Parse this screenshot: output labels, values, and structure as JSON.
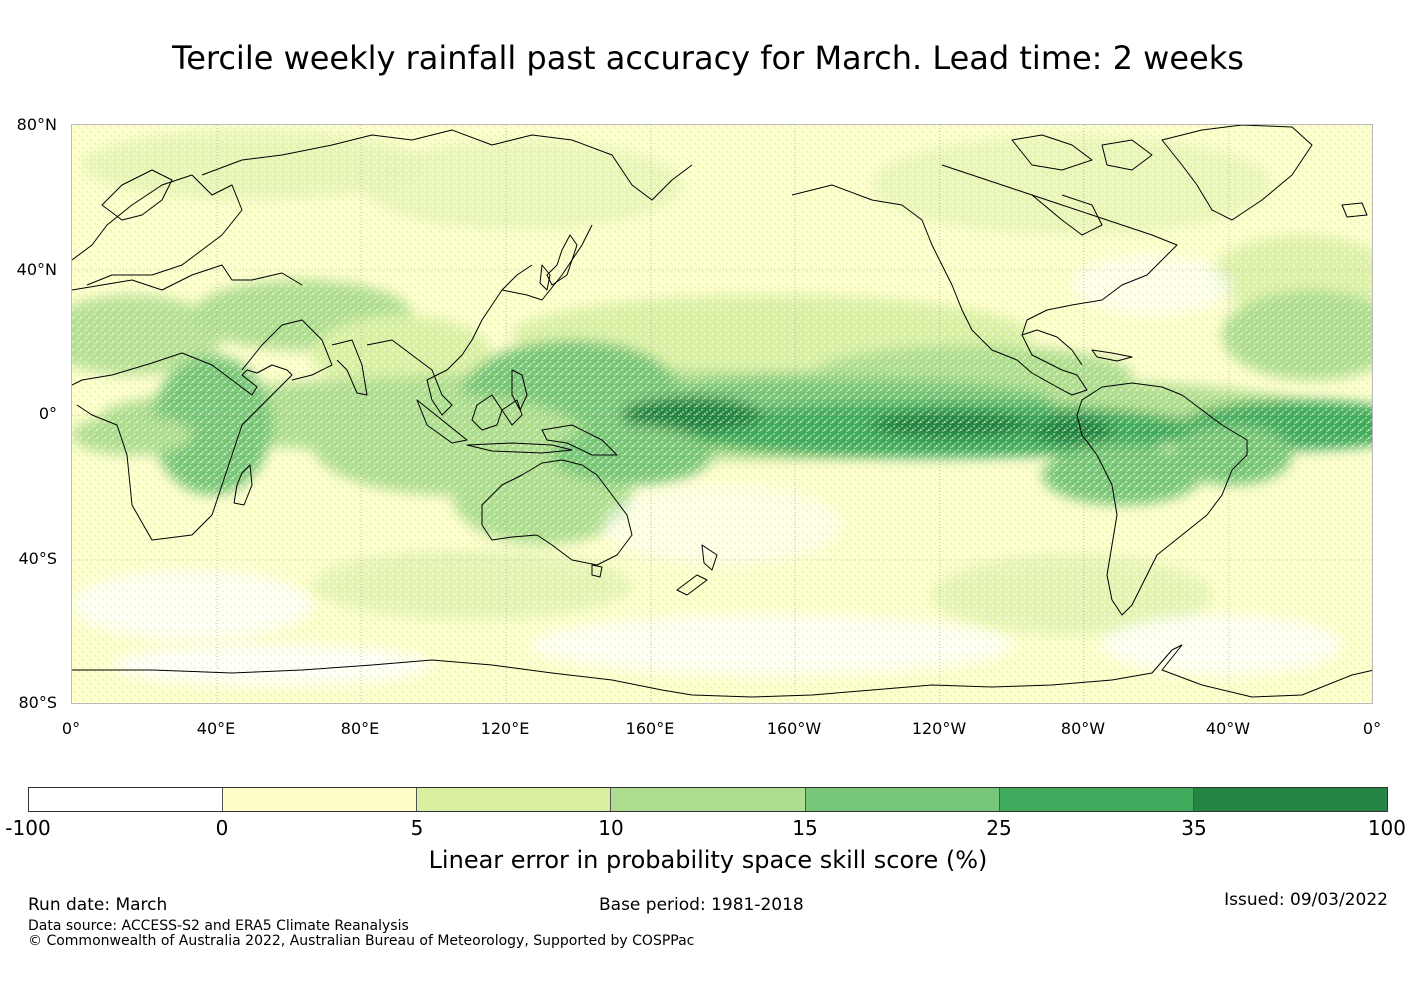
{
  "title": "Tercile weekly rainfall past accuracy for March. Lead time: 2 weeks",
  "map": {
    "lat_labels": [
      "80°N",
      "40°N",
      "0°",
      "40°S",
      "80°S"
    ],
    "lon_labels": [
      "0°",
      "40°E",
      "80°E",
      "120°E",
      "160°E",
      "160°W",
      "120°W",
      "80°W",
      "40°W",
      "0°"
    ],
    "land_outline_color": "#000000",
    "gridline_color": "#999999"
  },
  "colorbar": {
    "ticks": [
      "-100",
      "0",
      "5",
      "10",
      "15",
      "25",
      "35",
      "100"
    ],
    "colors": [
      "#ffffff",
      "#fefecb",
      "#d9f0a3",
      "#addd8e",
      "#78c679",
      "#41ab5d",
      "#238443"
    ],
    "label": "Linear error in probability space skill score (%)"
  },
  "footer": {
    "run_date": "Run date: March",
    "base_period": "Base period: 1981-2018",
    "issued": "Issued: 09/03/2022",
    "data_source": "Data source: ACCESS-S2 and ERA5 Climate Reanalysis",
    "copyright": "© Commonwealth of Australia 2022, Australian Bureau of Meteorology, Supported by COSPPac"
  }
}
